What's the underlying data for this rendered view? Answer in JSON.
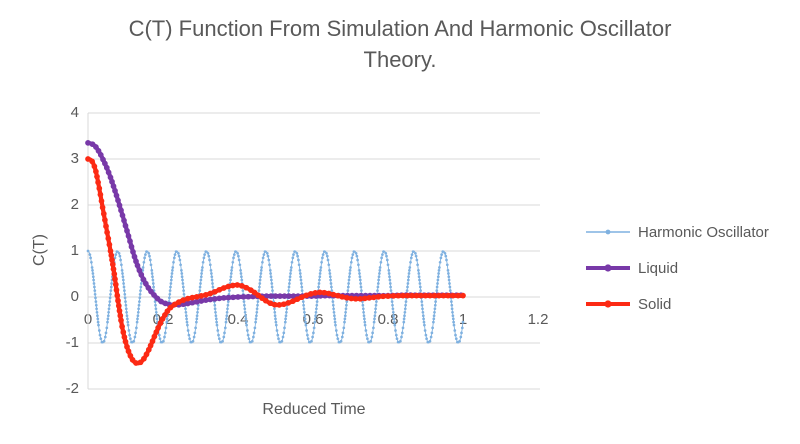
{
  "header": {
    "title_lines": [
      "C(T) Function From Simulation And Harmonic Oscillator",
      "Theory."
    ]
  },
  "colors": {
    "text": "#595959",
    "gridline": "#D9D9D9",
    "axis_line": "#D9D9D9",
    "harmonic": "#7FB1E0",
    "liquid": "#7839A8",
    "solid": "#FC2A14",
    "background": "#FFFFFF"
  },
  "chart_data": {
    "type": "line",
    "title": "C(T) Function From Simulation And Harmonic Oscillator Theory.",
    "xlabel": "Reduced Time",
    "ylabel": "C(T)",
    "xlim": [
      0,
      1.2
    ],
    "ylim": [
      -2,
      4
    ],
    "x_tick_values": [
      0,
      0.2,
      0.4,
      0.6,
      0.8,
      1,
      1.2
    ],
    "x_tick_labels": [
      "0",
      "0.2",
      "0.4",
      "0.6",
      "0.8",
      "1",
      "1.2"
    ],
    "y_tick_values": [
      4,
      3,
      2,
      1,
      0,
      -1,
      -2
    ],
    "y_tick_labels": [
      "4",
      "3",
      "2",
      "1",
      "0",
      "-1",
      "-2"
    ],
    "grid": "horizontal-only",
    "legend_position": "right",
    "series": [
      {
        "name": "Harmonic Oscillator",
        "color_key": "harmonic",
        "style": "thin-dotted-markers",
        "marker": "circle",
        "model": {
          "kind": "cosine",
          "amplitude": 1.0,
          "period": 0.079,
          "t_start": 0,
          "t_end": 1.0,
          "value_at_0": 1.0
        }
      },
      {
        "name": "Liquid",
        "color_key": "liquid",
        "style": "thick-beaded",
        "marker": "circle",
        "points": [
          [
            0,
            3.35
          ],
          [
            0.01,
            3.33
          ],
          [
            0.02,
            3.27
          ],
          [
            0.03,
            3.15
          ],
          [
            0.04,
            2.99
          ],
          [
            0.05,
            2.81
          ],
          [
            0.06,
            2.6
          ],
          [
            0.07,
            2.36
          ],
          [
            0.08,
            2.1
          ],
          [
            0.09,
            1.83
          ],
          [
            0.1,
            1.55
          ],
          [
            0.11,
            1.27
          ],
          [
            0.12,
            0.98
          ],
          [
            0.13,
            0.73
          ],
          [
            0.14,
            0.52
          ],
          [
            0.15,
            0.35
          ],
          [
            0.16,
            0.21
          ],
          [
            0.17,
            0.1
          ],
          [
            0.18,
            0.01
          ],
          [
            0.19,
            -0.07
          ],
          [
            0.2,
            -0.12
          ],
          [
            0.21,
            -0.15
          ],
          [
            0.22,
            -0.17
          ],
          [
            0.24,
            -0.17
          ],
          [
            0.26,
            -0.15
          ],
          [
            0.28,
            -0.12
          ],
          [
            0.3,
            -0.09
          ],
          [
            0.32,
            -0.06
          ],
          [
            0.34,
            -0.04
          ],
          [
            0.36,
            -0.02
          ],
          [
            0.38,
            -0.01
          ],
          [
            0.4,
            0
          ],
          [
            0.44,
            0.01
          ],
          [
            0.48,
            0.02
          ],
          [
            0.52,
            0.02
          ],
          [
            0.56,
            0.02
          ],
          [
            0.6,
            0.02
          ],
          [
            0.64,
            0.03
          ],
          [
            0.68,
            0.03
          ],
          [
            0.72,
            0.03
          ],
          [
            0.76,
            0.03
          ],
          [
            0.8,
            0.03
          ],
          [
            0.84,
            0.04
          ],
          [
            0.88,
            0.04
          ],
          [
            0.92,
            0.04
          ],
          [
            0.96,
            0.04
          ],
          [
            1,
            0.04
          ]
        ]
      },
      {
        "name": "Solid",
        "color_key": "solid",
        "style": "thick-beaded",
        "marker": "circle",
        "points": [
          [
            0,
            3.0
          ],
          [
            0.01,
            2.96
          ],
          [
            0.02,
            2.76
          ],
          [
            0.03,
            2.36
          ],
          [
            0.04,
            1.9
          ],
          [
            0.05,
            1.45
          ],
          [
            0.06,
            1.0
          ],
          [
            0.07,
            0.5
          ],
          [
            0.08,
            -0.08
          ],
          [
            0.09,
            -0.6
          ],
          [
            0.1,
            -0.97
          ],
          [
            0.11,
            -1.22
          ],
          [
            0.12,
            -1.38
          ],
          [
            0.13,
            -1.44
          ],
          [
            0.14,
            -1.42
          ],
          [
            0.15,
            -1.33
          ],
          [
            0.16,
            -1.18
          ],
          [
            0.17,
            -1.0
          ],
          [
            0.18,
            -0.8
          ],
          [
            0.19,
            -0.62
          ],
          [
            0.2,
            -0.46
          ],
          [
            0.21,
            -0.33
          ],
          [
            0.22,
            -0.23
          ],
          [
            0.24,
            -0.12
          ],
          [
            0.26,
            -0.05
          ],
          [
            0.28,
            -0.01
          ],
          [
            0.3,
            0.02
          ],
          [
            0.32,
            0.06
          ],
          [
            0.34,
            0.12
          ],
          [
            0.36,
            0.19
          ],
          [
            0.38,
            0.24
          ],
          [
            0.4,
            0.26
          ],
          [
            0.42,
            0.21
          ],
          [
            0.44,
            0.12
          ],
          [
            0.46,
            0
          ],
          [
            0.48,
            -0.11
          ],
          [
            0.5,
            -0.17
          ],
          [
            0.52,
            -0.16
          ],
          [
            0.54,
            -0.11
          ],
          [
            0.56,
            -0.04
          ],
          [
            0.58,
            0.03
          ],
          [
            0.6,
            0.08
          ],
          [
            0.62,
            0.1
          ],
          [
            0.64,
            0.08
          ],
          [
            0.66,
            0.04
          ],
          [
            0.68,
            0
          ],
          [
            0.7,
            -0.03
          ],
          [
            0.72,
            -0.04
          ],
          [
            0.74,
            -0.03
          ],
          [
            0.76,
            -0.01
          ],
          [
            0.78,
            0.01
          ],
          [
            0.8,
            0.02
          ],
          [
            0.84,
            0.03
          ],
          [
            0.88,
            0.03
          ],
          [
            0.92,
            0.03
          ],
          [
            0.96,
            0.03
          ],
          [
            1,
            0.03
          ]
        ]
      }
    ]
  }
}
